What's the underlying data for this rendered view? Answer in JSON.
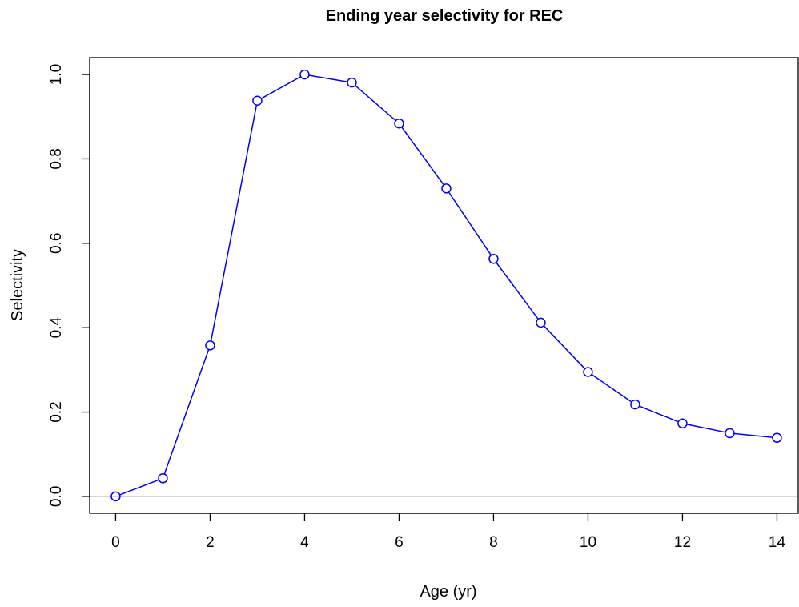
{
  "chart_data": {
    "type": "line",
    "title": "Ending year selectivity for REC",
    "xlabel": "Age (yr)",
    "ylabel": "Selectivity",
    "x": [
      0,
      1,
      2,
      3,
      4,
      5,
      6,
      7,
      8,
      9,
      10,
      11,
      12,
      13,
      14
    ],
    "series": [
      {
        "values": [
          0.0,
          0.043,
          0.358,
          0.938,
          1.0,
          0.981,
          0.884,
          0.73,
          0.563,
          0.412,
          0.295,
          0.218,
          0.173,
          0.15,
          0.139
        ]
      }
    ],
    "xlim": [
      -0.55,
      14.45
    ],
    "ylim": [
      -0.04,
      1.04
    ],
    "x_ticks": [
      "0",
      "2",
      "4",
      "6",
      "8",
      "10",
      "12",
      "14"
    ],
    "y_ticks": [
      "0.0",
      "0.2",
      "0.4",
      "0.6",
      "0.8",
      "1.0"
    ],
    "reference_line_y": 0,
    "colors": {
      "series": "#0000ff",
      "reference_line": "#bebebe",
      "axis": "#000000"
    },
    "marker": "open-circle",
    "grid": false,
    "legend": "none"
  }
}
